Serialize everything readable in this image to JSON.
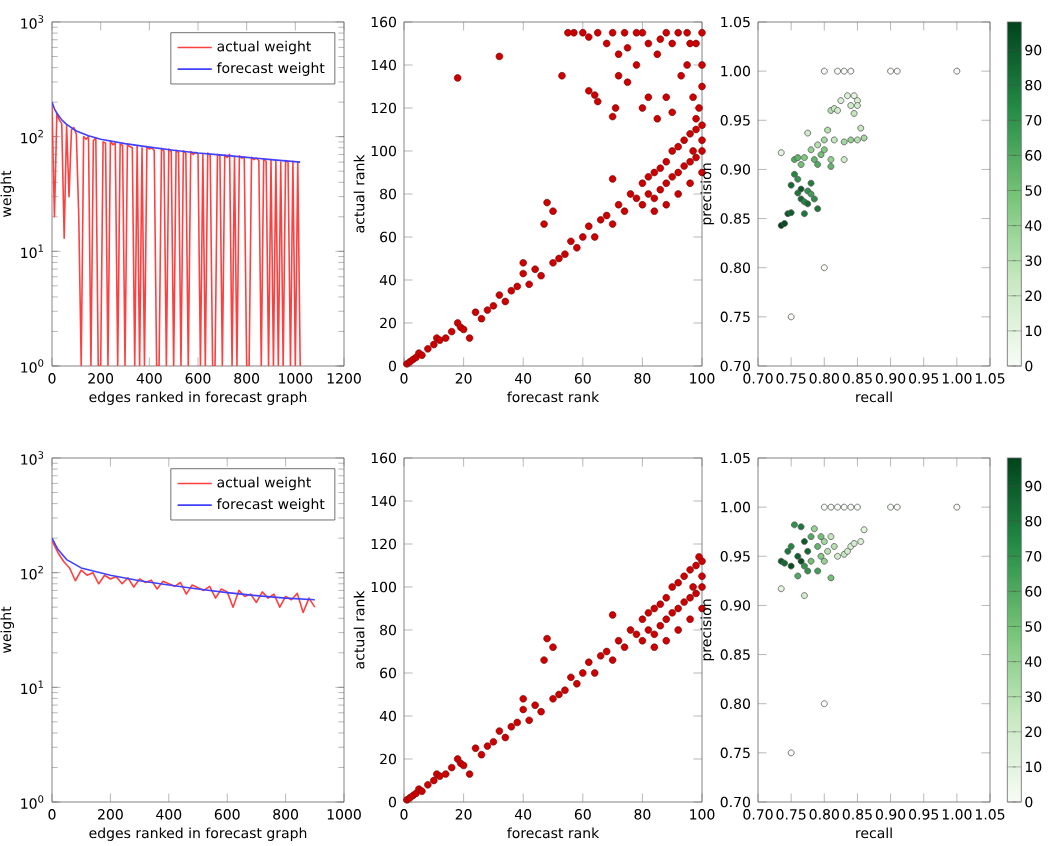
{
  "chart_data": [
    {
      "type": "line",
      "xlabel": "edges ranked in forecast graph",
      "ylabel": "weight",
      "log": "y",
      "xlim": [
        0,
        1200
      ],
      "xticks": [
        0,
        200,
        400,
        600,
        800,
        1000,
        1200
      ],
      "ylim": [
        1,
        1000
      ],
      "yticks": [
        {
          "value": 1,
          "label": "10$^{0}$"
        },
        {
          "value": 10,
          "label": "10$^{1}$"
        },
        {
          "value": 100,
          "label": "10$^{2}$"
        },
        {
          "value": 1000,
          "label": "10$^{3}$"
        }
      ],
      "legend": "top right",
      "series": [
        {
          "name": "actual weight",
          "color": "#ff4040",
          "x": [
            0,
            10,
            20,
            30,
            40,
            50,
            60,
            70,
            80,
            90,
            100,
            110,
            120,
            130,
            140,
            150,
            160,
            170,
            180,
            190,
            200,
            210,
            220,
            230,
            240,
            250,
            260,
            270,
            280,
            290,
            300,
            310,
            320,
            330,
            340,
            350,
            360,
            370,
            380,
            390,
            400,
            410,
            420,
            430,
            440,
            450,
            460,
            470,
            480,
            490,
            500,
            510,
            520,
            530,
            540,
            550,
            560,
            570,
            580,
            590,
            600,
            610,
            620,
            630,
            640,
            650,
            660,
            670,
            680,
            690,
            700,
            710,
            720,
            730,
            740,
            750,
            760,
            770,
            780,
            790,
            800,
            810,
            820,
            830,
            840,
            850,
            860,
            870,
            880,
            890,
            900,
            910,
            920,
            930,
            940,
            950,
            960,
            970,
            980,
            990,
            1000,
            1010,
            1020
          ],
          "values": [
            190,
            20,
            160,
            140,
            130,
            13,
            125,
            30,
            115,
            120,
            105,
            20,
            1,
            100,
            95,
            100,
            1,
            92,
            98,
            1,
            1,
            90,
            88,
            1,
            92,
            85,
            88,
            1,
            86,
            84,
            1,
            85,
            82,
            80,
            1,
            83,
            1,
            80,
            1,
            82,
            78,
            80,
            76,
            1,
            1,
            79,
            75,
            1,
            78,
            74,
            1,
            76,
            73,
            1,
            75,
            72,
            1,
            74,
            70,
            73,
            71,
            1,
            70,
            1,
            72,
            69,
            1,
            1,
            70,
            68,
            1,
            69,
            66,
            70,
            1,
            67,
            1,
            68,
            65,
            66,
            1,
            1,
            66,
            63,
            65,
            62,
            1,
            64,
            61,
            1,
            63,
            1,
            62,
            1,
            60,
            1,
            62,
            60,
            1,
            61,
            1,
            60,
            1
          ]
        },
        {
          "name": "forecast weight",
          "color": "#4040ff",
          "x": [
            0,
            10,
            20,
            40,
            60,
            100,
            150,
            200,
            300,
            400,
            500,
            600,
            700,
            800,
            900,
            1020
          ],
          "values": [
            200,
            175,
            160,
            140,
            128,
            112,
            102,
            95,
            87,
            81,
            76,
            72,
            69,
            66,
            63,
            60
          ]
        }
      ]
    },
    {
      "type": "scatter",
      "xlabel": "forecast rank",
      "ylabel": "actual rank",
      "xlim": [
        0,
        100
      ],
      "xticks": [
        0,
        20,
        40,
        60,
        80,
        100
      ],
      "ylim": [
        0,
        160
      ],
      "yticks": [
        0,
        20,
        40,
        60,
        80,
        100,
        120,
        140,
        160
      ],
      "marker": "circle",
      "color": "#cc0000",
      "x": [
        1,
        2,
        3,
        4,
        5,
        6,
        8,
        10,
        11,
        12,
        14,
        16,
        18,
        19,
        20,
        22,
        24,
        26,
        28,
        30,
        32,
        34,
        36,
        38,
        40,
        40,
        42,
        44,
        46,
        48,
        47,
        50,
        50,
        52,
        54,
        56,
        58,
        60,
        62,
        64,
        66,
        68,
        70,
        70,
        72,
        74,
        76,
        78,
        80,
        80,
        82,
        82,
        84,
        84,
        86,
        86,
        88,
        88,
        90,
        90,
        92,
        92,
        94,
        94,
        96,
        96,
        98,
        98,
        100,
        100,
        100,
        96,
        92,
        88,
        84,
        99,
        100,
        97,
        18,
        32,
        53,
        55,
        57,
        60,
        62,
        65,
        68,
        70,
        72,
        74,
        75,
        78,
        80,
        82,
        85,
        88,
        90,
        92,
        95,
        98,
        100,
        62,
        64,
        65,
        70,
        71,
        72,
        75,
        80,
        82,
        85,
        88,
        90,
        93,
        95,
        97,
        98,
        100,
        100,
        96,
        86,
        78
      ],
      "values": [
        1,
        2,
        3,
        4,
        6,
        5,
        8,
        10,
        13,
        12,
        13,
        16,
        20,
        18,
        17,
        13,
        25,
        22,
        26,
        28,
        33,
        30,
        35,
        37,
        43,
        48,
        38,
        45,
        42,
        76,
        66,
        72,
        48,
        50,
        52,
        58,
        55,
        60,
        65,
        60,
        68,
        70,
        87,
        66,
        75,
        72,
        80,
        78,
        85,
        75,
        88,
        80,
        90,
        78,
        92,
        82,
        95,
        85,
        100,
        88,
        102,
        90,
        105,
        93,
        108,
        95,
        110,
        97,
        112,
        100,
        90,
        85,
        80,
        75,
        72,
        120,
        105,
        100,
        134,
        144,
        135,
        155,
        155,
        155,
        153,
        155,
        150,
        155,
        145,
        155,
        148,
        140,
        155,
        150,
        145,
        155,
        150,
        155,
        155,
        150,
        155,
        128,
        126,
        123,
        116,
        120,
        135,
        132,
        120,
        125,
        115,
        125,
        118,
        135,
        140,
        125,
        115,
        130,
        140,
        150,
        152,
        155
      ]
    },
    {
      "type": "scatter",
      "xlabel": "recall",
      "ylabel": "precision",
      "xlim": [
        0.7,
        1.05
      ],
      "xticks": [
        {
          "value": 0.7,
          "label": "0.70"
        },
        {
          "value": 0.75,
          "label": "0.75"
        },
        {
          "value": 0.8,
          "label": "0.80"
        },
        {
          "value": 0.85,
          "label": "0.85"
        },
        {
          "value": 0.9,
          "label": "0.90"
        },
        {
          "value": 0.95,
          "label": "0.95"
        },
        {
          "value": 1.0,
          "label": "1.00"
        },
        {
          "value": 1.05,
          "label": "1.05"
        }
      ],
      "ylim": [
        0.7,
        1.05
      ],
      "yticks": [
        {
          "value": 0.7,
          "label": "0.70"
        },
        {
          "value": 0.75,
          "label": "0.75"
        },
        {
          "value": 0.8,
          "label": "0.80"
        },
        {
          "value": 0.85,
          "label": "0.85"
        },
        {
          "value": 0.9,
          "label": "0.90"
        },
        {
          "value": 0.95,
          "label": "0.95"
        },
        {
          "value": 1.0,
          "label": "1.00"
        },
        {
          "value": 1.05,
          "label": "1.05"
        }
      ],
      "marker": "circle",
      "clim": [
        0,
        98
      ],
      "cticks": [
        0,
        10,
        20,
        30,
        40,
        50,
        60,
        70,
        80,
        90
      ],
      "x": [
        0.75,
        0.8,
        0.8,
        0.82,
        0.83,
        0.84,
        0.9,
        0.91,
        1.0,
        0.735,
        0.735,
        0.74,
        0.745,
        0.75,
        0.75,
        0.755,
        0.76,
        0.76,
        0.765,
        0.765,
        0.77,
        0.77,
        0.775,
        0.78,
        0.765,
        0.77,
        0.775,
        0.78,
        0.785,
        0.79,
        0.795,
        0.8,
        0.8,
        0.805,
        0.81,
        0.81,
        0.815,
        0.81,
        0.815,
        0.82,
        0.825,
        0.83,
        0.83,
        0.835,
        0.84,
        0.845,
        0.845,
        0.85,
        0.85,
        0.855,
        0.85,
        0.86,
        0.84,
        0.79,
        0.76,
        0.755,
        0.775,
        0.78,
        0.785,
        0.79
      ],
      "values": [
        0.75,
        0.8,
        1.0,
        1.0,
        1.0,
        1.0,
        1.0,
        1.0,
        1.0,
        0.917,
        0.843,
        0.845,
        0.855,
        0.856,
        0.884,
        0.91,
        0.912,
        0.876,
        0.88,
        0.87,
        0.867,
        0.855,
        0.878,
        0.875,
        0.905,
        0.912,
        0.937,
        0.92,
        0.91,
        0.925,
        0.915,
        0.92,
        0.93,
        0.94,
        0.91,
        0.903,
        0.93,
        0.96,
        0.962,
        0.96,
        0.97,
        0.928,
        0.91,
        0.975,
        0.965,
        0.957,
        0.975,
        0.97,
        0.965,
        0.942,
        0.93,
        0.932,
        0.93,
        0.905,
        0.89,
        0.895,
        0.865,
        0.886,
        0.87,
        0.86
      ],
      "cvalues": [
        0,
        0,
        0,
        0,
        0,
        0,
        0,
        0,
        0,
        10,
        98,
        95,
        90,
        88,
        85,
        60,
        55,
        80,
        90,
        85,
        75,
        80,
        70,
        65,
        50,
        45,
        20,
        40,
        55,
        30,
        50,
        45,
        35,
        30,
        40,
        55,
        25,
        30,
        25,
        20,
        15,
        35,
        20,
        15,
        20,
        25,
        10,
        15,
        20,
        25,
        30,
        35,
        40,
        60,
        70,
        75,
        85,
        78,
        72,
        80
      ]
    },
    {
      "type": "line",
      "xlabel": "edges ranked in forecast graph",
      "ylabel": "weight",
      "log": "y",
      "xlim": [
        0,
        1000
      ],
      "xticks": [
        0,
        200,
        400,
        600,
        800,
        1000
      ],
      "ylim": [
        1,
        1000
      ],
      "yticks": [
        {
          "value": 1,
          "label": "10$^{0}$"
        },
        {
          "value": 10,
          "label": "10$^{1}$"
        },
        {
          "value": 100,
          "label": "10$^{2}$"
        },
        {
          "value": 1000,
          "label": "10$^{3}$"
        }
      ],
      "legend": "top right",
      "series": [
        {
          "name": "actual weight",
          "color": "#ff4040",
          "x": [
            0,
            20,
            40,
            60,
            80,
            100,
            120,
            140,
            160,
            180,
            200,
            220,
            240,
            260,
            280,
            300,
            320,
            340,
            360,
            380,
            400,
            420,
            440,
            460,
            480,
            500,
            520,
            540,
            560,
            580,
            600,
            620,
            640,
            660,
            680,
            700,
            720,
            740,
            760,
            780,
            800,
            820,
            840,
            860,
            880,
            900
          ],
          "values": [
            190,
            150,
            125,
            110,
            85,
            105,
            95,
            100,
            80,
            95,
            88,
            92,
            80,
            90,
            75,
            88,
            82,
            86,
            72,
            84,
            80,
            76,
            82,
            65,
            78,
            74,
            70,
            76,
            60,
            72,
            68,
            50,
            70,
            62,
            65,
            55,
            68,
            60,
            65,
            50,
            62,
            58,
            66,
            45,
            60,
            50
          ]
        },
        {
          "name": "forecast weight",
          "color": "#4040ff",
          "x": [
            0,
            20,
            50,
            100,
            200,
            300,
            400,
            500,
            600,
            700,
            800,
            900
          ],
          "values": [
            200,
            160,
            130,
            110,
            95,
            85,
            78,
            72,
            67,
            63,
            60,
            58
          ]
        }
      ]
    },
    {
      "type": "scatter",
      "xlabel": "forecast rank",
      "ylabel": "actual rank",
      "xlim": [
        0,
        100
      ],
      "xticks": [
        0,
        20,
        40,
        60,
        80,
        100
      ],
      "ylim": [
        0,
        160
      ],
      "yticks": [
        0,
        20,
        40,
        60,
        80,
        100,
        120,
        140,
        160
      ],
      "marker": "circle",
      "color": "#cc0000",
      "x": [
        1,
        2,
        3,
        4,
        5,
        6,
        8,
        10,
        11,
        12,
        14,
        16,
        18,
        19,
        20,
        22,
        24,
        26,
        28,
        30,
        32,
        34,
        36,
        38,
        40,
        40,
        42,
        44,
        46,
        48,
        47,
        50,
        50,
        52,
        54,
        56,
        58,
        60,
        62,
        64,
        66,
        68,
        70,
        70,
        72,
        74,
        76,
        78,
        80,
        80,
        82,
        82,
        84,
        84,
        86,
        86,
        88,
        88,
        90,
        90,
        92,
        92,
        94,
        94,
        96,
        96,
        98,
        98,
        100,
        100,
        100,
        96,
        92,
        88,
        84,
        99,
        100,
        97
      ],
      "values": [
        1,
        2,
        3,
        4,
        6,
        5,
        8,
        10,
        13,
        12,
        13,
        16,
        20,
        18,
        17,
        13,
        25,
        22,
        26,
        28,
        33,
        30,
        35,
        37,
        43,
        48,
        38,
        45,
        42,
        76,
        66,
        72,
        48,
        50,
        52,
        58,
        55,
        60,
        65,
        60,
        68,
        70,
        87,
        66,
        75,
        72,
        80,
        78,
        85,
        75,
        88,
        80,
        90,
        78,
        92,
        82,
        95,
        85,
        100,
        88,
        102,
        90,
        105,
        93,
        108,
        95,
        110,
        97,
        112,
        100,
        90,
        85,
        80,
        75,
        72,
        114,
        105,
        100
      ]
    },
    {
      "type": "scatter",
      "xlabel": "recall",
      "ylabel": "precision",
      "xlim": [
        0.7,
        1.05
      ],
      "xticks": [
        {
          "value": 0.7,
          "label": "0.70"
        },
        {
          "value": 0.75,
          "label": "0.75"
        },
        {
          "value": 0.8,
          "label": "0.80"
        },
        {
          "value": 0.85,
          "label": "0.85"
        },
        {
          "value": 0.9,
          "label": "0.90"
        },
        {
          "value": 0.95,
          "label": "0.95"
        },
        {
          "value": 1.0,
          "label": "1.00"
        },
        {
          "value": 1.05,
          "label": "1.05"
        }
      ],
      "ylim": [
        0.7,
        1.05
      ],
      "yticks": [
        {
          "value": 0.7,
          "label": "0.70"
        },
        {
          "value": 0.75,
          "label": "0.75"
        },
        {
          "value": 0.8,
          "label": "0.80"
        },
        {
          "value": 0.85,
          "label": "0.85"
        },
        {
          "value": 0.9,
          "label": "0.90"
        },
        {
          "value": 0.95,
          "label": "0.95"
        },
        {
          "value": 1.0,
          "label": "1.00"
        },
        {
          "value": 1.05,
          "label": "1.05"
        }
      ],
      "marker": "circle",
      "clim": [
        0,
        98
      ],
      "cticks": [
        0,
        10,
        20,
        30,
        40,
        50,
        60,
        70,
        80,
        90
      ],
      "x": [
        0.75,
        0.8,
        0.8,
        0.81,
        0.82,
        0.83,
        0.84,
        0.85,
        0.9,
        0.91,
        1.0,
        0.735,
        0.77,
        0.735,
        0.74,
        0.745,
        0.75,
        0.755,
        0.76,
        0.76,
        0.765,
        0.77,
        0.77,
        0.775,
        0.78,
        0.78,
        0.785,
        0.79,
        0.79,
        0.795,
        0.8,
        0.8,
        0.805,
        0.81,
        0.81,
        0.815,
        0.82,
        0.83,
        0.835,
        0.84,
        0.845,
        0.855,
        0.86,
        0.75,
        0.765,
        0.775,
        0.795
      ],
      "values": [
        0.75,
        0.8,
        1.0,
        1.0,
        1.0,
        1.0,
        1.0,
        1.0,
        1.0,
        1.0,
        1.0,
        0.917,
        0.91,
        0.945,
        0.943,
        0.955,
        0.96,
        0.982,
        0.95,
        0.93,
        0.98,
        0.965,
        0.94,
        0.955,
        0.97,
        0.945,
        0.978,
        0.96,
        0.935,
        0.95,
        0.965,
        0.945,
        0.955,
        0.97,
        0.928,
        0.96,
        0.95,
        0.952,
        0.955,
        0.96,
        0.963,
        0.965,
        0.977,
        0.94,
        0.945,
        0.935,
        0.97
      ],
      "cvalues": [
        0,
        0,
        0,
        0,
        0,
        0,
        0,
        0,
        0,
        0,
        0,
        10,
        20,
        90,
        85,
        80,
        75,
        70,
        88,
        60,
        80,
        90,
        70,
        85,
        60,
        50,
        40,
        55,
        65,
        45,
        35,
        40,
        30,
        25,
        50,
        30,
        20,
        25,
        20,
        15,
        20,
        15,
        10,
        95,
        95,
        70,
        50
      ]
    }
  ]
}
